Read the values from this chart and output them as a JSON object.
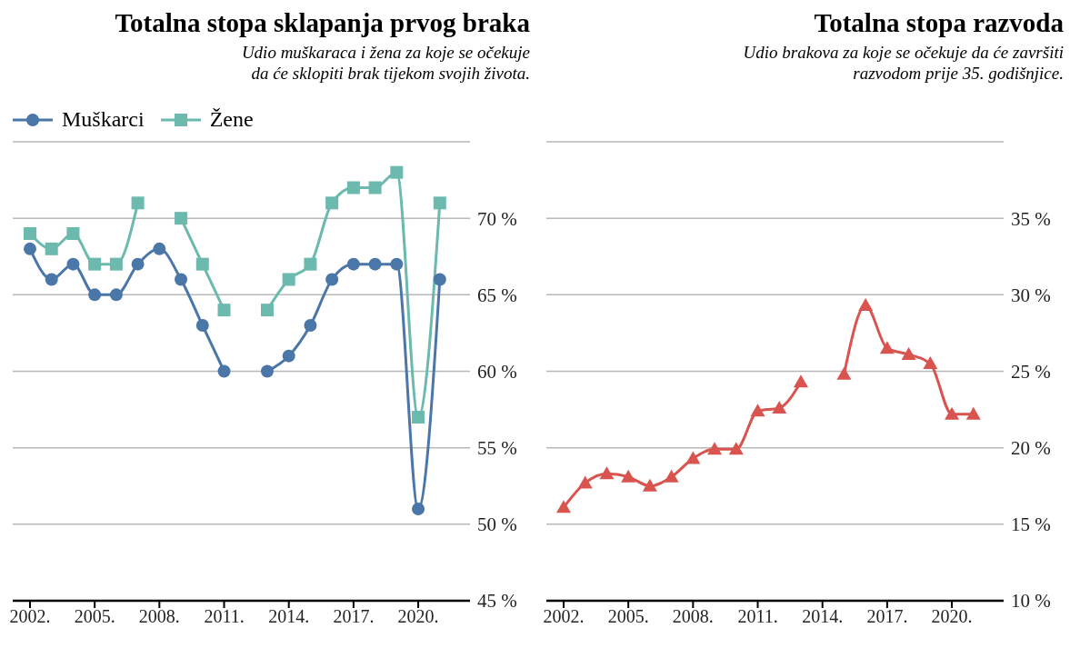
{
  "chart_data": [
    {
      "type": "line",
      "title": "Totalna stopa sklapanja prvog braka",
      "subtitle": "Udio muškaraca i žena za koje se očekuje\nda će sklopiti brak tijekom svojih života.",
      "x": [
        2002,
        2003,
        2004,
        2005,
        2006,
        2007,
        2008,
        2009,
        2010,
        2011,
        2012,
        2013,
        2014,
        2015,
        2016,
        2017,
        2018,
        2019,
        2020,
        2021
      ],
      "series": [
        {
          "name": "Muškarci",
          "color": "#4a76a8",
          "marker": "circle",
          "values": [
            68,
            66,
            67,
            65,
            65,
            67,
            68,
            66,
            63,
            60,
            null,
            60,
            61,
            63,
            66,
            67,
            67,
            67,
            51,
            66
          ]
        },
        {
          "name": "Žene",
          "color": "#6cb9ae",
          "marker": "square",
          "values": [
            69,
            68,
            69,
            67,
            67,
            71,
            null,
            70,
            67,
            64,
            null,
            64,
            66,
            67,
            71,
            72,
            72,
            73,
            57,
            71
          ]
        }
      ],
      "xlim": [
        2001.2,
        2022.4
      ],
      "xticks": [
        {
          "value": 2002,
          "label": "2002."
        },
        {
          "value": 2005,
          "label": "2005."
        },
        {
          "value": 2008,
          "label": "2008."
        },
        {
          "value": 2011,
          "label": "2011."
        },
        {
          "value": 2014,
          "label": "2014."
        },
        {
          "value": 2017,
          "label": "2017."
        },
        {
          "value": 2020,
          "label": "2020."
        }
      ],
      "ylim": [
        45,
        75
      ],
      "yticks": [
        {
          "value": 45,
          "label": "45 %"
        },
        {
          "value": 50,
          "label": "50 %"
        },
        {
          "value": 55,
          "label": "55 %"
        },
        {
          "value": 60,
          "label": "60 %"
        },
        {
          "value": 65,
          "label": "65 %"
        },
        {
          "value": 70,
          "label": "70 %"
        }
      ],
      "grid": "y",
      "legend": "top left"
    },
    {
      "type": "line",
      "title": "Totalna stopa razvoda",
      "subtitle": "Udio brakova za koje se očekuje da će završiti\nrazvodom prije 35. godišnjice.",
      "x": [
        2002,
        2003,
        2004,
        2005,
        2006,
        2007,
        2008,
        2009,
        2010,
        2011,
        2012,
        2013,
        2014,
        2015,
        2016,
        2017,
        2018,
        2019,
        2020,
        2021
      ],
      "series": [
        {
          "color": "#d9534f",
          "marker": "triangle",
          "values": [
            16.1,
            17.7,
            18.3,
            18.1,
            17.5,
            18.1,
            19.3,
            19.9,
            19.9,
            22.4,
            22.6,
            24.3,
            null,
            24.8,
            29.3,
            26.5,
            26.1,
            25.5,
            22.2,
            22.2
          ]
        }
      ],
      "xlim": [
        2001.2,
        2022.4
      ],
      "xticks": [
        {
          "value": 2002,
          "label": "2002."
        },
        {
          "value": 2005,
          "label": "2005."
        },
        {
          "value": 2008,
          "label": "2008."
        },
        {
          "value": 2011,
          "label": "2011."
        },
        {
          "value": 2014,
          "label": "2014."
        },
        {
          "value": 2017,
          "label": "2017."
        },
        {
          "value": 2020,
          "label": "2020."
        }
      ],
      "ylim": [
        10,
        40
      ],
      "yticks": [
        {
          "value": 10,
          "label": "10 %"
        },
        {
          "value": 15,
          "label": "15 %"
        },
        {
          "value": 20,
          "label": "20 %"
        },
        {
          "value": 25,
          "label": "25 %"
        },
        {
          "value": 30,
          "label": "30 %"
        },
        {
          "value": 35,
          "label": "35 %"
        }
      ],
      "grid": "y",
      "legend": false
    }
  ]
}
